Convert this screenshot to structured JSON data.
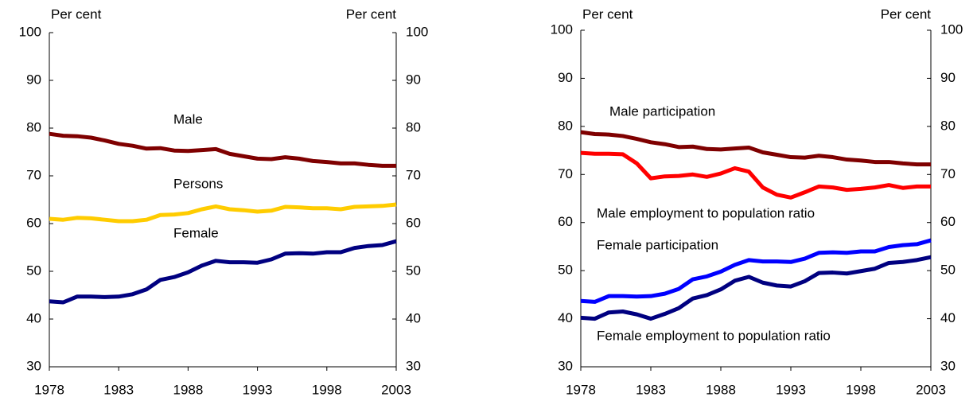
{
  "chart_data": [
    {
      "type": "line",
      "y_label": "Per cent",
      "y2_label": "Per cent",
      "x": [
        1978,
        1979,
        1980,
        1981,
        1982,
        1983,
        1984,
        1985,
        1986,
        1987,
        1988,
        1989,
        1990,
        1991,
        1992,
        1993,
        1994,
        1995,
        1996,
        1997,
        1998,
        1999,
        2000,
        2001,
        2002,
        2003
      ],
      "xlim": [
        1978,
        2003
      ],
      "xticks": [
        1978,
        1983,
        1988,
        1993,
        1998,
        2003
      ],
      "ylim": [
        30,
        100
      ],
      "yticks": [
        30,
        40,
        50,
        60,
        70,
        80,
        90,
        100
      ],
      "y2lim": [
        30,
        100
      ],
      "y2ticks": [
        30,
        40,
        50,
        60,
        70,
        80,
        90,
        100
      ],
      "series": [
        {
          "name": "Male",
          "color": "#7f0000",
          "values": [
            78.8,
            78.4,
            78.3,
            78.0,
            77.4,
            76.7,
            76.3,
            75.7,
            75.8,
            75.3,
            75.2,
            75.4,
            75.6,
            74.6,
            74.1,
            73.6,
            73.5,
            73.9,
            73.6,
            73.1,
            72.9,
            72.6,
            72.6,
            72.3,
            72.1,
            72.1
          ]
        },
        {
          "name": "Persons",
          "color": "#ffcc00",
          "values": [
            61.0,
            60.8,
            61.2,
            61.1,
            60.8,
            60.5,
            60.5,
            60.8,
            61.8,
            61.9,
            62.2,
            63.0,
            63.6,
            63.0,
            62.8,
            62.5,
            62.7,
            63.5,
            63.4,
            63.2,
            63.2,
            63.0,
            63.5,
            63.6,
            63.7,
            64.0
          ]
        },
        {
          "name": "Female",
          "color": "#000080",
          "values": [
            43.7,
            43.5,
            44.7,
            44.7,
            44.6,
            44.7,
            45.2,
            46.2,
            48.2,
            48.8,
            49.8,
            51.2,
            52.2,
            51.9,
            51.9,
            51.8,
            52.5,
            53.7,
            53.8,
            53.7,
            54.0,
            54.0,
            54.9,
            55.3,
            55.5,
            56.3
          ]
        }
      ]
    },
    {
      "type": "line",
      "y_label": "Per cent",
      "y2_label": "Per cent",
      "x": [
        1978,
        1979,
        1980,
        1981,
        1982,
        1983,
        1984,
        1985,
        1986,
        1987,
        1988,
        1989,
        1990,
        1991,
        1992,
        1993,
        1994,
        1995,
        1996,
        1997,
        1998,
        1999,
        2000,
        2001,
        2002,
        2003
      ],
      "xlim": [
        1978,
        2003
      ],
      "xticks": [
        1978,
        1983,
        1988,
        1993,
        1998,
        2003
      ],
      "ylim": [
        30,
        100
      ],
      "yticks": [
        30,
        40,
        50,
        60,
        70,
        80,
        90,
        100
      ],
      "y2lim": [
        30,
        100
      ],
      "y2ticks": [
        30,
        40,
        50,
        60,
        70,
        80,
        90,
        100
      ],
      "series": [
        {
          "name": "Male participation",
          "color": "#7f0000",
          "values": [
            78.8,
            78.4,
            78.3,
            78.0,
            77.4,
            76.7,
            76.3,
            75.7,
            75.8,
            75.3,
            75.2,
            75.4,
            75.6,
            74.6,
            74.1,
            73.6,
            73.5,
            73.9,
            73.6,
            73.1,
            72.9,
            72.6,
            72.6,
            72.3,
            72.1,
            72.1
          ]
        },
        {
          "name": "Male employment to population ratio",
          "color": "#ff0000",
          "values": [
            74.5,
            74.3,
            74.3,
            74.2,
            72.3,
            69.2,
            69.6,
            69.7,
            70.0,
            69.5,
            70.2,
            71.3,
            70.6,
            67.3,
            65.8,
            65.2,
            66.3,
            67.5,
            67.3,
            66.8,
            67.0,
            67.3,
            67.8,
            67.2,
            67.5,
            67.5
          ]
        },
        {
          "name": "Female participation",
          "color": "#0000ff",
          "values": [
            43.7,
            43.5,
            44.7,
            44.7,
            44.6,
            44.7,
            45.2,
            46.2,
            48.2,
            48.8,
            49.8,
            51.2,
            52.2,
            51.9,
            51.9,
            51.8,
            52.5,
            53.7,
            53.8,
            53.7,
            54.0,
            54.0,
            54.9,
            55.3,
            55.5,
            56.3
          ]
        },
        {
          "name": "Female employment to population ratio",
          "color": "#000080",
          "values": [
            40.2,
            40.0,
            41.3,
            41.5,
            40.9,
            40.0,
            41.0,
            42.2,
            44.2,
            44.9,
            46.1,
            47.9,
            48.7,
            47.5,
            46.9,
            46.7,
            47.8,
            49.5,
            49.6,
            49.4,
            49.9,
            50.4,
            51.6,
            51.8,
            52.2,
            52.8
          ]
        }
      ]
    }
  ]
}
